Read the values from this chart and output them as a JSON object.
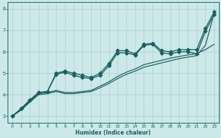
{
  "xlabel": "Humidex (Indice chaleur)",
  "ylabel": "",
  "xlim": [
    -0.5,
    23.5
  ],
  "ylim": [
    2.7,
    8.3
  ],
  "yticks": [
    3,
    4,
    5,
    6,
    7,
    8
  ],
  "xticks": [
    0,
    1,
    2,
    3,
    4,
    5,
    6,
    7,
    8,
    9,
    10,
    11,
    12,
    13,
    14,
    15,
    16,
    17,
    18,
    19,
    20,
    21,
    22,
    23
  ],
  "bg_color": "#cce8e8",
  "grid_color": "#aacece",
  "line_color": "#1a6060",
  "curves": [
    {
      "x": [
        0,
        1,
        2,
        3,
        4,
        5,
        6,
        7,
        8,
        9,
        10,
        11,
        12,
        13,
        14,
        15,
        16,
        17,
        18,
        19,
        20,
        21,
        22,
        23
      ],
      "y": [
        3.0,
        3.35,
        3.75,
        4.1,
        4.15,
        5.0,
        5.1,
        5.0,
        4.9,
        4.8,
        5.0,
        5.45,
        6.05,
        6.05,
        5.9,
        6.35,
        6.4,
        6.05,
        6.0,
        6.1,
        6.1,
        6.1,
        7.1,
        7.85
      ],
      "marker": "D",
      "markersize": 2.5,
      "linewidth": 1.0
    },
    {
      "x": [
        0,
        1,
        2,
        3,
        4,
        5,
        6,
        7,
        8,
        9,
        10,
        11,
        12,
        13,
        14,
        15,
        16,
        17,
        18,
        19,
        20,
        21,
        22,
        23
      ],
      "y": [
        3.0,
        3.35,
        3.75,
        4.1,
        4.15,
        4.95,
        5.05,
        4.9,
        4.8,
        4.75,
        4.9,
        5.35,
        5.95,
        5.95,
        5.85,
        6.3,
        6.35,
        5.95,
        5.9,
        6.0,
        6.0,
        5.9,
        6.95,
        7.75
      ],
      "marker": "D",
      "markersize": 2.5,
      "linewidth": 1.0
    },
    {
      "x": [
        0,
        1,
        2,
        3,
        4,
        5,
        6,
        7,
        8,
        9,
        10,
        11,
        12,
        13,
        14,
        15,
        16,
        17,
        18,
        19,
        20,
        21,
        22,
        23
      ],
      "y": [
        3.0,
        3.3,
        3.7,
        4.05,
        4.1,
        4.2,
        4.1,
        4.1,
        4.15,
        4.2,
        4.4,
        4.6,
        4.85,
        5.05,
        5.2,
        5.4,
        5.5,
        5.6,
        5.7,
        5.78,
        5.85,
        5.92,
        6.1,
        6.35
      ],
      "marker": null,
      "markersize": 0,
      "linewidth": 0.9
    },
    {
      "x": [
        0,
        1,
        2,
        3,
        4,
        5,
        6,
        7,
        8,
        9,
        10,
        11,
        12,
        13,
        14,
        15,
        16,
        17,
        18,
        19,
        20,
        21,
        22,
        23
      ],
      "y": [
        3.0,
        3.28,
        3.65,
        4.0,
        4.05,
        4.15,
        4.05,
        4.05,
        4.1,
        4.15,
        4.32,
        4.52,
        4.75,
        4.95,
        5.1,
        5.28,
        5.38,
        5.48,
        5.58,
        5.68,
        5.75,
        5.82,
        6.3,
        7.8
      ],
      "marker": null,
      "markersize": 0,
      "linewidth": 0.9
    }
  ]
}
